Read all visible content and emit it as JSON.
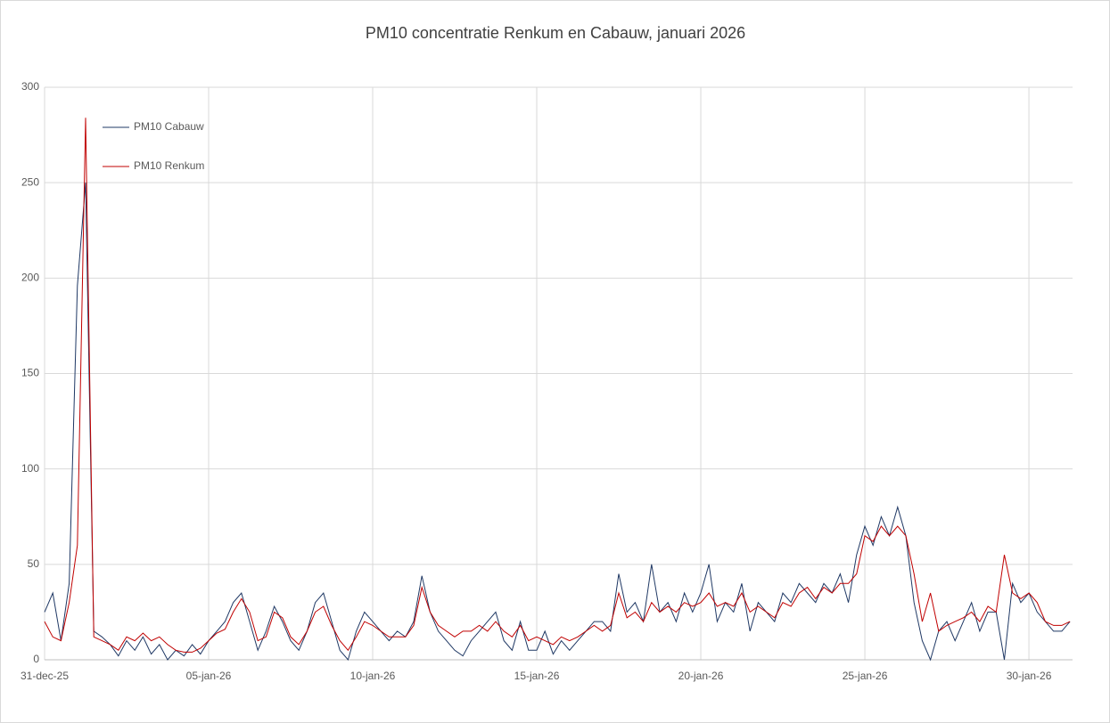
{
  "chart_data": {
    "type": "line",
    "title": "PM10 concentratie Renkum en Cabauw, januari 2026",
    "x": [
      0,
      0.25,
      0.5,
      0.75,
      1,
      1.25,
      1.5,
      1.75,
      2,
      2.25,
      2.5,
      2.75,
      3,
      3.25,
      3.5,
      3.75,
      4,
      4.25,
      4.5,
      4.75,
      5,
      5.25,
      5.5,
      5.75,
      6,
      6.25,
      6.5,
      6.75,
      7,
      7.25,
      7.5,
      7.75,
      8,
      8.25,
      8.5,
      8.75,
      9,
      9.25,
      9.5,
      9.75,
      10,
      10.25,
      10.5,
      10.75,
      11,
      11.25,
      11.5,
      11.75,
      12,
      12.25,
      12.5,
      12.75,
      13,
      13.25,
      13.5,
      13.75,
      14,
      14.25,
      14.5,
      14.75,
      15,
      15.25,
      15.5,
      15.75,
      16,
      16.25,
      16.5,
      16.75,
      17,
      17.25,
      17.5,
      17.75,
      18,
      18.25,
      18.5,
      18.75,
      19,
      19.25,
      19.5,
      19.75,
      20,
      20.25,
      20.5,
      20.75,
      21,
      21.25,
      21.5,
      21.75,
      22,
      22.25,
      22.5,
      22.75,
      23,
      23.25,
      23.5,
      23.75,
      24,
      24.25,
      24.5,
      24.75,
      25,
      25.25,
      25.5,
      25.75,
      26,
      26.25,
      26.5,
      26.75,
      27,
      27.25,
      27.5,
      27.75,
      28,
      28.25,
      28.5,
      28.75,
      29,
      29.25,
      29.5,
      29.75,
      30,
      30.25,
      30.5,
      30.75,
      31,
      31.25
    ],
    "series": [
      {
        "name": "PM10 Cabauw",
        "color": "#1f3864",
        "values": [
          25,
          35,
          10,
          40,
          196,
          250,
          15,
          12,
          8,
          2,
          10,
          5,
          12,
          3,
          8,
          0,
          5,
          2,
          8,
          3,
          10,
          15,
          20,
          30,
          35,
          20,
          5,
          15,
          28,
          20,
          10,
          5,
          15,
          30,
          35,
          20,
          5,
          0,
          15,
          25,
          20,
          15,
          10,
          15,
          12,
          20,
          44,
          25,
          15,
          10,
          5,
          2,
          10,
          15,
          20,
          25,
          10,
          5,
          20,
          5,
          5,
          15,
          3,
          10,
          5,
          10,
          15,
          20,
          20,
          15,
          45,
          25,
          30,
          20,
          50,
          25,
          30,
          20,
          35,
          25,
          35,
          50,
          20,
          30,
          25,
          40,
          15,
          30,
          25,
          20,
          35,
          30,
          40,
          35,
          30,
          40,
          35,
          45,
          30,
          55,
          70,
          60,
          75,
          65,
          80,
          65,
          30,
          10,
          0,
          15,
          20,
          10,
          20,
          30,
          15,
          25,
          25,
          0,
          40,
          30,
          35,
          25,
          20,
          15,
          15,
          20
        ]
      },
      {
        "name": "PM10 Renkum",
        "color": "#c00000",
        "values": [
          20,
          12,
          10,
          30,
          60,
          284,
          12,
          10,
          8,
          5,
          12,
          10,
          14,
          10,
          12,
          8,
          5,
          4,
          4,
          6,
          10,
          14,
          16,
          25,
          32,
          25,
          10,
          12,
          25,
          22,
          12,
          8,
          15,
          25,
          28,
          18,
          10,
          5,
          12,
          20,
          18,
          15,
          12,
          12,
          12,
          18,
          38,
          25,
          18,
          15,
          12,
          15,
          15,
          18,
          15,
          20,
          15,
          12,
          18,
          10,
          12,
          10,
          8,
          12,
          10,
          12,
          15,
          18,
          15,
          18,
          35,
          22,
          25,
          20,
          30,
          25,
          28,
          25,
          30,
          28,
          30,
          35,
          28,
          30,
          28,
          35,
          25,
          28,
          25,
          22,
          30,
          28,
          35,
          38,
          32,
          38,
          35,
          40,
          40,
          45,
          65,
          62,
          70,
          65,
          70,
          65,
          45,
          20,
          35,
          15,
          18,
          20,
          22,
          25,
          20,
          28,
          25,
          55,
          35,
          32,
          35,
          30,
          20,
          18,
          18,
          20
        ]
      }
    ],
    "xlim": [
      0,
      31.33
    ],
    "ylim": [
      0,
      300
    ],
    "xticks": [
      {
        "value": 0,
        "label": "31-dec-25"
      },
      {
        "value": 5,
        "label": "05-jan-26"
      },
      {
        "value": 10,
        "label": "10-jan-26"
      },
      {
        "value": 15,
        "label": "15-jan-26"
      },
      {
        "value": 20,
        "label": "20-jan-26"
      },
      {
        "value": 25,
        "label": "25-jan-26"
      },
      {
        "value": 30,
        "label": "30-jan-26"
      }
    ],
    "yticks": [
      0,
      50,
      100,
      150,
      200,
      250,
      300
    ],
    "grid": true,
    "legend": "top-left"
  }
}
